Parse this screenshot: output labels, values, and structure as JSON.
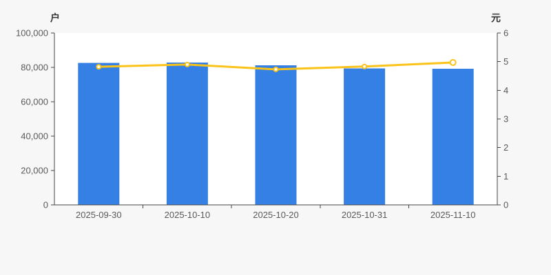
{
  "chart_data": {
    "type": "bar",
    "subtype": "bar-line-dual-axis",
    "title": "",
    "categories": [
      "2025-09-30",
      "2025-10-10",
      "2025-10-20",
      "2025-10-31",
      "2025-11-10"
    ],
    "series": [
      {
        "type": "bar",
        "axis": "left",
        "unit": "户",
        "color": "#3580e4",
        "values": [
          82600,
          82800,
          81200,
          79400,
          79200
        ]
      },
      {
        "type": "line",
        "axis": "right",
        "unit": "元",
        "color": "#fbc318",
        "values": [
          4.82,
          4.9,
          4.73,
          4.83,
          4.97
        ]
      }
    ],
    "left_axis": {
      "name": "户",
      "min": 0,
      "max": 100000,
      "tick_labels": [
        "100,000",
        "80,000",
        "60,000",
        "40,000",
        "20,000",
        "0"
      ],
      "tick_values": [
        100000,
        80000,
        60000,
        40000,
        20000,
        0
      ]
    },
    "right_axis": {
      "name": "元",
      "min": 0,
      "max": 6,
      "tick_labels": [
        "6",
        "5",
        "4",
        "3",
        "2",
        "1",
        "0"
      ],
      "tick_values": [
        6,
        5,
        4,
        3,
        2,
        1,
        0
      ]
    },
    "grid": false,
    "legend": "none",
    "colors": {
      "page_bg": "#f7f7f7",
      "plot_bg": "#ffffff",
      "bar": "#3580e4",
      "line": "#fbc318",
      "marker_fill": "#ffffff",
      "axis_line": "#464646",
      "tick_label": "#595959"
    }
  }
}
